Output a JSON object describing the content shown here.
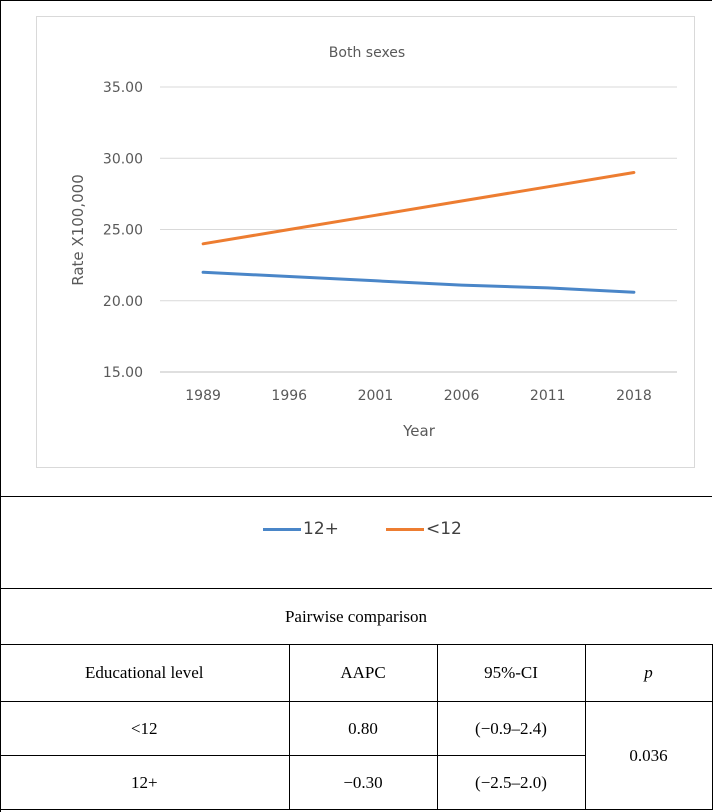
{
  "chart_data": {
    "type": "line",
    "title": "Both sexes",
    "xlabel": "Year",
    "ylabel": "Rate X100,000",
    "categories": [
      "1989",
      "1996",
      "2001",
      "2006",
      "2011",
      "2018"
    ],
    "yticks": [
      "35.00",
      "30.00",
      "25.00",
      "20.00",
      "15.00"
    ],
    "ylim": [
      15,
      35
    ],
    "grid": true,
    "legend_position": "bottom",
    "series": [
      {
        "name": "12+",
        "color": "#4a86c8",
        "values": [
          22.0,
          21.7,
          21.4,
          21.1,
          20.9,
          20.6
        ]
      },
      {
        "name": "<12",
        "color": "#ed7d31",
        "values": [
          24.0,
          25.0,
          26.0,
          27.0,
          28.0,
          29.0
        ]
      }
    ]
  },
  "legend": [
    {
      "label": "12+",
      "color": "#4a86c8"
    },
    {
      "label": "<12",
      "color": "#ed7d31"
    }
  ],
  "comparison": {
    "caption": "Pairwise comparison",
    "headers": [
      "Educational level",
      "AAPC",
      "95%-CI",
      "p"
    ],
    "rows": [
      {
        "level": "<12",
        "aapc": "0.80",
        "ci": "(−0.9–2.4)"
      },
      {
        "level": "12+",
        "aapc": "−0.30",
        "ci": "(−2.5–2.0)"
      }
    ],
    "p_value": "0.036"
  }
}
